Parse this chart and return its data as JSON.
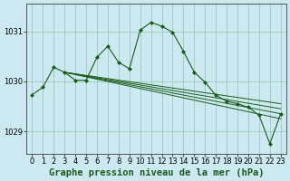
{
  "title": "Graphe pression niveau de la mer (hPa)",
  "background_color": "#cce8f0",
  "grid_color": "#99ccbb",
  "line_color": "#1a5c1a",
  "xlim": [
    -0.5,
    23.5
  ],
  "ylim": [
    1028.55,
    1031.55
  ],
  "yticks": [
    1029,
    1030,
    1031
  ],
  "xticks": [
    0,
    1,
    2,
    3,
    4,
    5,
    6,
    7,
    8,
    9,
    10,
    11,
    12,
    13,
    14,
    15,
    16,
    17,
    18,
    19,
    20,
    21,
    22,
    23
  ],
  "tick_fontsize": 6,
  "title_fontsize": 7.5,
  "main_y": [
    1029.73,
    1029.88,
    1030.28,
    1030.18,
    1030.02,
    1030.02,
    1030.48,
    1030.7,
    1030.38,
    1030.25,
    1031.02,
    1031.18,
    1031.1,
    1030.98,
    1030.6,
    1030.18,
    1029.98,
    1029.72,
    1029.6,
    1029.55,
    1029.48,
    1029.32,
    1028.75,
    1029.35
  ],
  "flat_lines": [
    {
      "x0": 3,
      "y0": 1030.18,
      "x1": 23,
      "y1": 1029.55
    },
    {
      "x0": 3,
      "y0": 1030.18,
      "x1": 23,
      "y1": 1029.45
    },
    {
      "x0": 3,
      "y0": 1030.18,
      "x1": 23,
      "y1": 1029.35
    },
    {
      "x0": 3,
      "y0": 1030.18,
      "x1": 23,
      "y1": 1029.25
    }
  ]
}
